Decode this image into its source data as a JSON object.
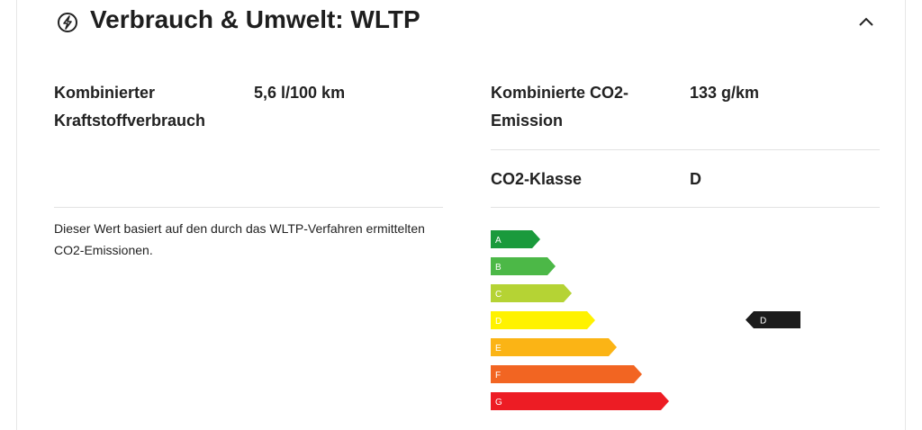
{
  "header": {
    "title": "Verbrauch & Umwelt: WLTP"
  },
  "consumption": {
    "label": "Kombinierter Kraftstoffverbrauch",
    "value": "5,6 l/100 km",
    "note": "Dieser Wert basiert auf den durch das WLTP-Verfahren ermittelten CO2-Emissionen."
  },
  "emission": {
    "label": "Kombinierte CO2-Emission",
    "value": "133 g/km"
  },
  "co2_class": {
    "label": "CO2-Klasse",
    "value": "D"
  },
  "energy_label": {
    "classes": [
      "A",
      "B",
      "C",
      "D",
      "E",
      "F",
      "G"
    ],
    "indicator": "D"
  }
}
